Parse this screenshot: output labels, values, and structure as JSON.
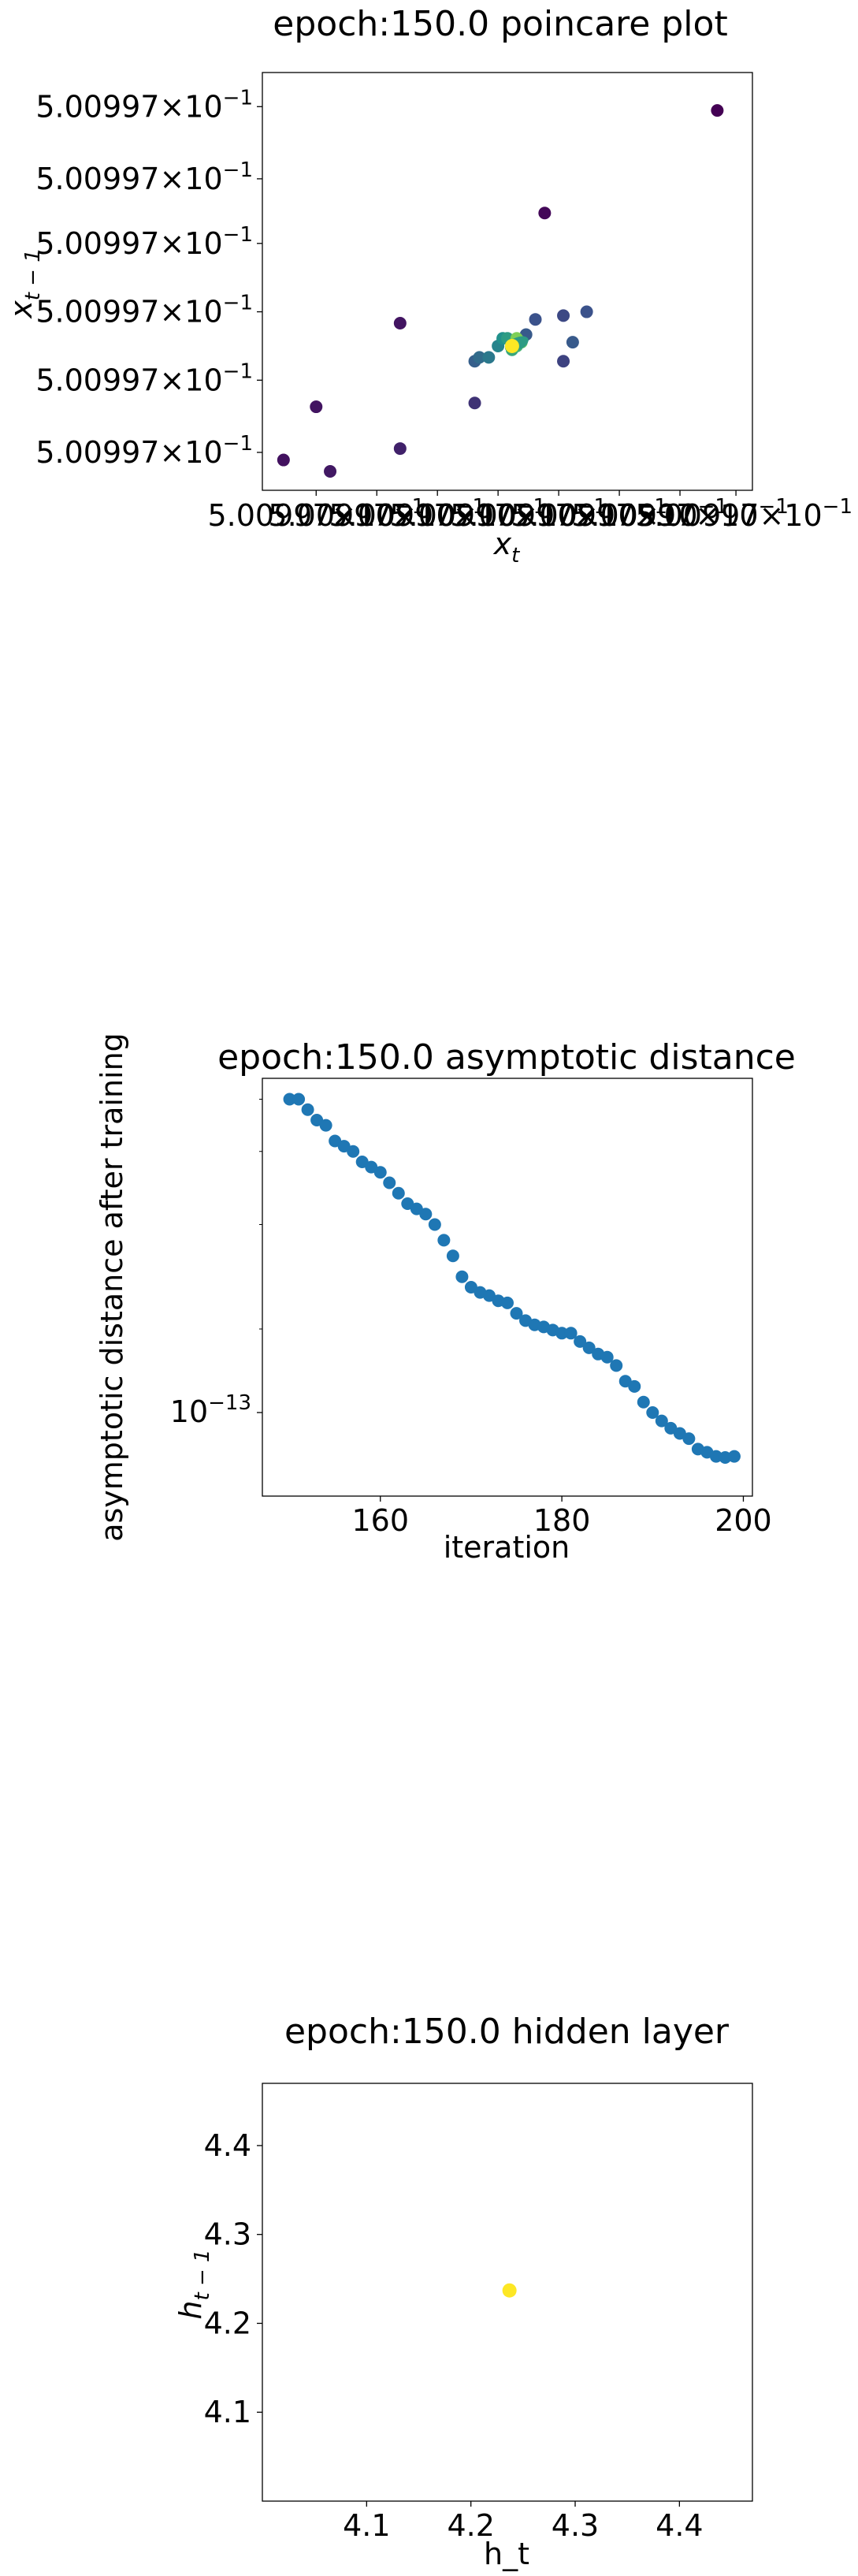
{
  "chart_data": [
    {
      "type": "scatter",
      "title": "epoch:150.0 poincare plot",
      "xlabel_base": "x",
      "xlabel_sub": "t",
      "ylabel_base": "x",
      "ylabel_sub": "t − 1",
      "colormap": "viridis",
      "xlim": [
        0,
        1
      ],
      "ylim": [
        0,
        1
      ],
      "x_tick_text": "5.00997×10",
      "x_tick_exp": "−1",
      "x_ticks": [
        0.09,
        0.22,
        0.35,
        0.48,
        0.61,
        0.74,
        0.87,
        0.99
      ],
      "y_tick_text": "5.00997×10",
      "y_tick_exp": "−1",
      "y_ticks": [
        0.96,
        0.77,
        0.6,
        0.42,
        0.24,
        0.05
      ],
      "points": [
        {
          "x": 0.95,
          "y": 0.95,
          "c": 0.0
        },
        {
          "x": 0.58,
          "y": 0.68,
          "c": 0.02
        },
        {
          "x": 0.02,
          "y": 0.03,
          "c": 0.05
        },
        {
          "x": 0.09,
          "y": 0.17,
          "c": 0.06
        },
        {
          "x": 0.12,
          "y": 0.0,
          "c": 0.07
        },
        {
          "x": 0.27,
          "y": 0.06,
          "c": 0.1
        },
        {
          "x": 0.27,
          "y": 0.39,
          "c": 0.06
        },
        {
          "x": 0.43,
          "y": 0.18,
          "c": 0.15
        },
        {
          "x": 0.62,
          "y": 0.29,
          "c": 0.2
        },
        {
          "x": 0.62,
          "y": 0.41,
          "c": 0.22
        },
        {
          "x": 0.64,
          "y": 0.34,
          "c": 0.28
        },
        {
          "x": 0.67,
          "y": 0.42,
          "c": 0.25
        },
        {
          "x": 0.56,
          "y": 0.4,
          "c": 0.25
        },
        {
          "x": 0.54,
          "y": 0.36,
          "c": 0.28
        },
        {
          "x": 0.43,
          "y": 0.29,
          "c": 0.3
        },
        {
          "x": 0.44,
          "y": 0.3,
          "c": 0.35
        },
        {
          "x": 0.46,
          "y": 0.3,
          "c": 0.4
        },
        {
          "x": 0.48,
          "y": 0.33,
          "c": 0.45
        },
        {
          "x": 0.49,
          "y": 0.35,
          "c": 0.5
        },
        {
          "x": 0.5,
          "y": 0.35,
          "c": 0.55
        },
        {
          "x": 0.51,
          "y": 0.32,
          "c": 0.6
        },
        {
          "x": 0.52,
          "y": 0.33,
          "c": 0.65
        },
        {
          "x": 0.53,
          "y": 0.34,
          "c": 0.72
        },
        {
          "x": 0.52,
          "y": 0.35,
          "c": 0.8
        },
        {
          "x": 0.51,
          "y": 0.33,
          "c": 1.0
        }
      ]
    },
    {
      "type": "scatter",
      "title": "epoch:150.0 asymptotic distance",
      "xlabel": "iteration",
      "ylabel": "asymptotic distance after training",
      "y_scale": "log",
      "color": "#1f77b4",
      "xlim": [
        147,
        201
      ],
      "ylim_log10": [
        -13.08,
        -12.68
      ],
      "x_ticks": [
        160,
        180,
        200
      ],
      "y_tick_base": "10",
      "y_tick_exp": "−13",
      "y_tick_value_log10": -13.0,
      "x": [
        150,
        151,
        152,
        153,
        154,
        155,
        156,
        157,
        158,
        159,
        160,
        161,
        162,
        163,
        164,
        165,
        166,
        167,
        168,
        169,
        170,
        171,
        172,
        173,
        174,
        175,
        176,
        177,
        178,
        179,
        180,
        181,
        182,
        183,
        184,
        185,
        186,
        187,
        188,
        189,
        190,
        191,
        192,
        193,
        194,
        195,
        196,
        197,
        198,
        199
      ],
      "y_log10": [
        -12.7,
        -12.7,
        -12.71,
        -12.72,
        -12.725,
        -12.74,
        -12.745,
        -12.75,
        -12.76,
        -12.765,
        -12.77,
        -12.78,
        -12.79,
        -12.8,
        -12.805,
        -12.81,
        -12.82,
        -12.835,
        -12.85,
        -12.87,
        -12.88,
        -12.885,
        -12.888,
        -12.893,
        -12.895,
        -12.905,
        -12.912,
        -12.916,
        -12.918,
        -12.921,
        -12.924,
        -12.924,
        -12.932,
        -12.938,
        -12.944,
        -12.947,
        -12.955,
        -12.97,
        -12.975,
        -12.99,
        -13.0,
        -13.008,
        -13.015,
        -13.02,
        -13.025,
        -13.035,
        -13.038,
        -13.042,
        -13.043,
        -13.042
      ]
    },
    {
      "type": "scatter",
      "title": "epoch:150.0 hidden layer",
      "xlabel": "h_t",
      "ylabel_base": "h",
      "ylabel_sub": "t − 1",
      "color": "#fde725",
      "xlim": [
        4.0,
        4.47
      ],
      "ylim": [
        4.0,
        4.47
      ],
      "x_ticks": [
        4.1,
        4.2,
        4.3,
        4.4
      ],
      "y_ticks": [
        4.1,
        4.2,
        4.3,
        4.4
      ],
      "x": [
        4.237
      ],
      "y": [
        4.237
      ]
    }
  ]
}
